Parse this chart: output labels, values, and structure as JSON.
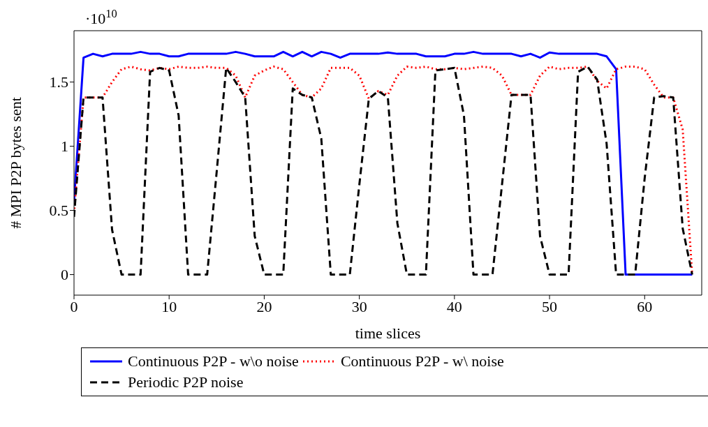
{
  "chart_data": {
    "type": "line",
    "xlabel": "time slices",
    "ylabel": "# MPI P2P bytes sent",
    "annotations": [
      "·10$^{10}$"
    ],
    "x": [
      0,
      1,
      2,
      3,
      4,
      5,
      6,
      7,
      8,
      9,
      10,
      11,
      12,
      13,
      14,
      15,
      16,
      17,
      18,
      19,
      20,
      21,
      22,
      23,
      24,
      25,
      26,
      27,
      28,
      29,
      30,
      31,
      32,
      33,
      34,
      35,
      36,
      37,
      38,
      39,
      40,
      41,
      42,
      43,
      44,
      45,
      46,
      47,
      48,
      49,
      50,
      51,
      52,
      53,
      54,
      55,
      56,
      57,
      58,
      59,
      60,
      61,
      62,
      63,
      64,
      65
    ],
    "series": [
      {
        "name": "Continuous P2P - w\\o noise",
        "color": "#0000ff",
        "line_style": "solid",
        "values": [
          0.57,
          1.69,
          1.72,
          1.7,
          1.72,
          1.72,
          1.72,
          1.735,
          1.72,
          1.72,
          1.7,
          1.7,
          1.72,
          1.72,
          1.72,
          1.72,
          1.72,
          1.735,
          1.72,
          1.7,
          1.7,
          1.7,
          1.735,
          1.7,
          1.735,
          1.7,
          1.735,
          1.72,
          1.69,
          1.72,
          1.72,
          1.72,
          1.72,
          1.73,
          1.72,
          1.72,
          1.72,
          1.7,
          1.7,
          1.7,
          1.72,
          1.72,
          1.735,
          1.72,
          1.72,
          1.72,
          1.72,
          1.7,
          1.72,
          1.69,
          1.73,
          1.72,
          1.72,
          1.72,
          1.72,
          1.72,
          1.7,
          1.6,
          0,
          0,
          0,
          0,
          0,
          0,
          0,
          0
        ]
      },
      {
        "name": "Continuous P2P - w\\ noise",
        "color": "#ff0000",
        "line_style": "dotted",
        "values": [
          0.48,
          1.38,
          1.38,
          1.38,
          1.5,
          1.6,
          1.62,
          1.6,
          1.59,
          1.61,
          1.6,
          1.62,
          1.61,
          1.61,
          1.62,
          1.61,
          1.61,
          1.55,
          1.38,
          1.55,
          1.59,
          1.62,
          1.6,
          1.5,
          1.4,
          1.38,
          1.45,
          1.61,
          1.61,
          1.61,
          1.55,
          1.37,
          1.43,
          1.4,
          1.55,
          1.62,
          1.61,
          1.62,
          1.6,
          1.6,
          1.61,
          1.6,
          1.61,
          1.62,
          1.61,
          1.55,
          1.4,
          1.4,
          1.4,
          1.55,
          1.62,
          1.6,
          1.61,
          1.61,
          1.62,
          1.51,
          1.45,
          1.6,
          1.62,
          1.62,
          1.6,
          1.48,
          1.38,
          1.38,
          1.13,
          0
        ]
      },
      {
        "name": "Periodic P2P noise",
        "color": "#000000",
        "line_style": "dashed",
        "values": [
          0.45,
          1.38,
          1.38,
          1.38,
          0.35,
          0,
          0,
          0,
          1.58,
          1.61,
          1.59,
          1.24,
          0,
          0,
          0,
          0.8,
          1.61,
          1.5,
          1.38,
          0.3,
          0,
          0,
          0,
          1.45,
          1.4,
          1.38,
          1.06,
          0,
          0,
          0,
          0.7,
          1.37,
          1.43,
          1.38,
          0.4,
          0,
          0,
          0,
          1.59,
          1.6,
          1.61,
          1.24,
          0,
          0,
          0,
          0.7,
          1.4,
          1.4,
          1.4,
          0.3,
          0,
          0,
          0,
          1.58,
          1.62,
          1.52,
          1.02,
          0,
          0,
          0,
          0.75,
          1.38,
          1.39,
          1.38,
          0.36,
          0
        ]
      }
    ],
    "xlim": [
      0,
      66
    ],
    "xticks": [
      0,
      10,
      20,
      30,
      40,
      50,
      60
    ],
    "ylim": [
      -0.16,
      1.9
    ],
    "yticks": [
      0,
      0.5,
      1,
      1.5
    ],
    "grid": false,
    "legend": "bottom",
    "marker": "none"
  }
}
